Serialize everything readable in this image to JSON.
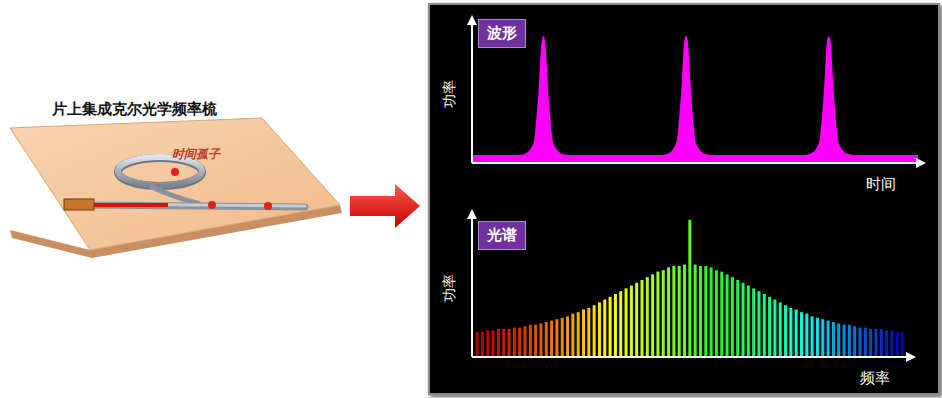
{
  "diagram": {
    "title": "片上集成克尔光学频率梳",
    "label": "时间孤子"
  },
  "chart_data": [
    {
      "type": "area",
      "title": "波形",
      "x_label": "时间",
      "y_label": "功率",
      "x": [
        0,
        2,
        4,
        6,
        8,
        10,
        12,
        14,
        15,
        16,
        17,
        18,
        20,
        22,
        24,
        26,
        28,
        30,
        32,
        34,
        36,
        38,
        40,
        42,
        44,
        46,
        47,
        48,
        49,
        50,
        52,
        54,
        56,
        58,
        60,
        62,
        64,
        66,
        68,
        70,
        72,
        74,
        76,
        78,
        79,
        80,
        81,
        82,
        84,
        86,
        88,
        90,
        92,
        94,
        96,
        98,
        100
      ],
      "values": [
        5,
        5,
        5,
        5,
        5,
        5,
        6,
        14,
        45,
        90,
        45,
        14,
        6,
        5,
        5,
        5,
        5,
        5,
        5,
        5,
        5,
        5,
        5,
        5,
        6,
        14,
        45,
        90,
        45,
        14,
        6,
        5,
        5,
        5,
        5,
        5,
        5,
        5,
        5,
        5,
        5,
        5,
        6,
        14,
        45,
        90,
        45,
        14,
        6,
        5,
        5,
        5,
        5,
        5,
        5,
        5,
        5
      ],
      "xlim": [
        0,
        100
      ],
      "ylim": [
        0,
        100
      ],
      "color": "#ff00ff",
      "tick_labels": false
    },
    {
      "type": "bar",
      "title": "光谱",
      "x_label": "频率",
      "y_label": "功率",
      "x": [
        -40,
        -39,
        -38,
        -37,
        -36,
        -35,
        -34,
        -33,
        -32,
        -31,
        -30,
        -29,
        -28,
        -27,
        -26,
        -25,
        -24,
        -23,
        -22,
        -21,
        -20,
        -19,
        -18,
        -17,
        -16,
        -15,
        -14,
        -13,
        -12,
        -11,
        -10,
        -9,
        -8,
        -7,
        -6,
        -5,
        -4,
        -3,
        -2,
        -1,
        0,
        1,
        2,
        3,
        4,
        5,
        6,
        7,
        8,
        9,
        10,
        11,
        12,
        13,
        14,
        15,
        16,
        17,
        18,
        19,
        20,
        21,
        22,
        23,
        24,
        25,
        26,
        27,
        28,
        29,
        30,
        31,
        32,
        33,
        34,
        35,
        36,
        37,
        38,
        39,
        40
      ],
      "values": [
        18,
        18,
        19,
        19,
        20,
        20,
        20,
        21,
        21,
        22,
        23,
        23,
        24,
        25,
        26,
        27,
        28,
        29,
        31,
        32,
        34,
        35,
        37,
        39,
        41,
        43,
        45,
        47,
        49,
        51,
        53,
        55,
        57,
        59,
        61,
        62,
        64,
        65,
        65,
        66,
        98,
        66,
        65,
        65,
        64,
        62,
        61,
        59,
        57,
        55,
        53,
        51,
        49,
        47,
        45,
        43,
        41,
        39,
        37,
        35,
        34,
        32,
        31,
        29,
        28,
        27,
        26,
        25,
        24,
        23,
        23,
        22,
        21,
        21,
        20,
        20,
        20,
        19,
        19,
        18,
        18
      ],
      "xlim": [
        -41,
        41
      ],
      "ylim": [
        0,
        100
      ],
      "tick_labels": false
    }
  ]
}
